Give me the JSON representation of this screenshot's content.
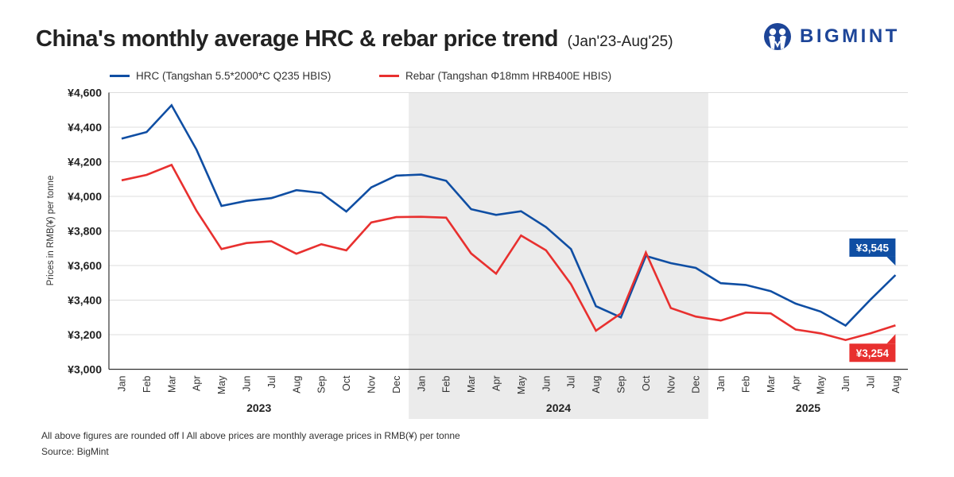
{
  "header": {
    "title": "China's monthly average HRC & rebar price trend",
    "subtitle": "(Jan'23-Aug'25)",
    "logo_text": "BIGMINT"
  },
  "footer": {
    "note": "All above figures are rounded off   I  All above prices are monthly average prices in RMB(¥) per tonne",
    "source": "Source: BigMint"
  },
  "colors": {
    "hrc": "#0f4ea3",
    "rebar": "#e8302f",
    "shade": "#ebebeb",
    "grid": "#dcdcdc",
    "brand": "#1d4598"
  },
  "chart_data": {
    "type": "line",
    "title": "China's monthly average HRC & rebar price trend (Jan'23-Aug'25)",
    "xlabel": "",
    "ylabel": "Prices in RMB(¥) per tonne",
    "ylim": [
      3000,
      4600
    ],
    "yticks": [
      3000,
      3200,
      3400,
      3600,
      3800,
      4000,
      4200,
      4400,
      4600
    ],
    "ytick_labels": [
      "¥3,000",
      "¥3,200",
      "¥3,400",
      "¥3,600",
      "¥3,800",
      "¥4,000",
      "¥4,200",
      "¥4,400",
      "¥4,600"
    ],
    "grid": true,
    "legend_position": "top",
    "categories": [
      "Jan",
      "Feb",
      "Mar",
      "Apr",
      "May",
      "Jun",
      "Jul",
      "Aug",
      "Sep",
      "Oct",
      "Nov",
      "Dec",
      "Jan",
      "Feb",
      "Mar",
      "Apr",
      "May",
      "Jun",
      "Jul",
      "Aug",
      "Sep",
      "Oct",
      "Nov",
      "Dec",
      "Jan",
      "Feb",
      "Mar",
      "Apr",
      "May",
      "Jun",
      "Jul",
      "Aug"
    ],
    "year_groups": [
      {
        "label": "2023",
        "start": 0,
        "end": 11,
        "shaded": false
      },
      {
        "label": "2024",
        "start": 12,
        "end": 23,
        "shaded": true
      },
      {
        "label": "2025",
        "start": 24,
        "end": 31,
        "shaded": false
      }
    ],
    "series": [
      {
        "name": "HRC (Tangshan 5.5*2000*C Q235 HBIS)",
        "key": "hrc",
        "values": [
          4334,
          4372,
          4527,
          4270,
          3945,
          3974,
          3990,
          4036,
          4020,
          3912,
          4052,
          4120,
          4126,
          4090,
          3926,
          3893,
          3914,
          3822,
          3695,
          3365,
          3300,
          3655,
          3614,
          3586,
          3498,
          3488,
          3452,
          3380,
          3334,
          3253,
          3403,
          3545
        ],
        "end_label": "¥3,545"
      },
      {
        "name": "Rebar (Tangshan Φ18mm HRB400E HBIS)",
        "key": "rebar",
        "values": [
          4093,
          4124,
          4182,
          3917,
          3695,
          3730,
          3740,
          3668,
          3723,
          3688,
          3849,
          3880,
          3882,
          3877,
          3670,
          3553,
          3774,
          3688,
          3492,
          3223,
          3323,
          3675,
          3354,
          3305,
          3282,
          3328,
          3323,
          3230,
          3208,
          3169,
          3208,
          3254
        ],
        "end_label": "¥3,254"
      }
    ]
  }
}
